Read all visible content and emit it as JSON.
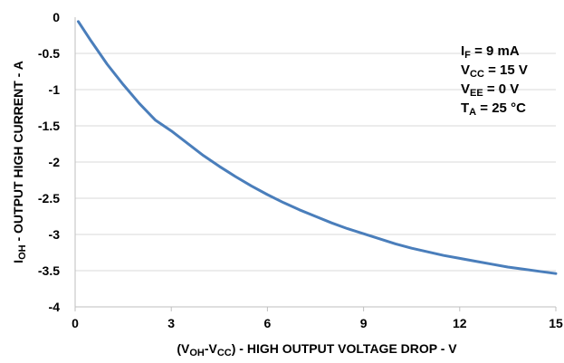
{
  "chart_data": {
    "type": "line",
    "xlabel": {
      "pre": "(V",
      "sub1": "OH",
      "mid": "-V",
      "sub2": "CC",
      "post": ") - HIGH OUTPUT VOLTAGE DROP - V"
    },
    "ylabel": {
      "pre": "I",
      "sub": "OH",
      "post": " - OUTPUT HIGH CURRENT - A"
    },
    "xlim": [
      0,
      15
    ],
    "ylim": [
      -4,
      0
    ],
    "x_ticks": [
      0,
      3,
      6,
      9,
      12,
      15
    ],
    "y_ticks": [
      0,
      -0.5,
      -1,
      -1.5,
      -2,
      -2.5,
      -3,
      -3.5,
      -4
    ],
    "x_tick_labels": [
      "0",
      "3",
      "6",
      "9",
      "12",
      "15"
    ],
    "y_tick_labels": [
      "0",
      "-0.5",
      "-1",
      "-1.5",
      "-2",
      "-2.5",
      "-3",
      "-3.5",
      "-4"
    ],
    "grid": "horizontal",
    "series": [
      {
        "color": "#4a7ebb",
        "x": [
          0.1,
          0.5,
          1,
          1.5,
          2,
          2.5,
          3,
          3.5,
          4,
          4.5,
          5,
          5.5,
          6,
          6.5,
          7,
          7.5,
          8,
          8.5,
          9,
          9.5,
          10,
          10.5,
          11,
          11.5,
          12,
          12.5,
          13,
          13.5,
          14,
          14.5,
          15
        ],
        "y": [
          -0.06,
          -0.33,
          -0.65,
          -0.93,
          -1.19,
          -1.42,
          -1.57,
          -1.74,
          -1.91,
          -2.06,
          -2.2,
          -2.33,
          -2.45,
          -2.56,
          -2.66,
          -2.75,
          -2.84,
          -2.92,
          -2.99,
          -3.06,
          -3.13,
          -3.19,
          -3.24,
          -3.29,
          -3.33,
          -3.37,
          -3.41,
          -3.45,
          -3.48,
          -3.51,
          -3.54
        ]
      }
    ],
    "annotations": [
      {
        "main": "I",
        "sub": "F",
        "rest": " = 9 mA"
      },
      {
        "main": "V",
        "sub": "CC",
        "rest": " = 15 V"
      },
      {
        "main": "V",
        "sub": "EE",
        "rest": " = 0 V"
      },
      {
        "main": "T",
        "sub": "A",
        "rest": " = 25 °C"
      }
    ]
  }
}
